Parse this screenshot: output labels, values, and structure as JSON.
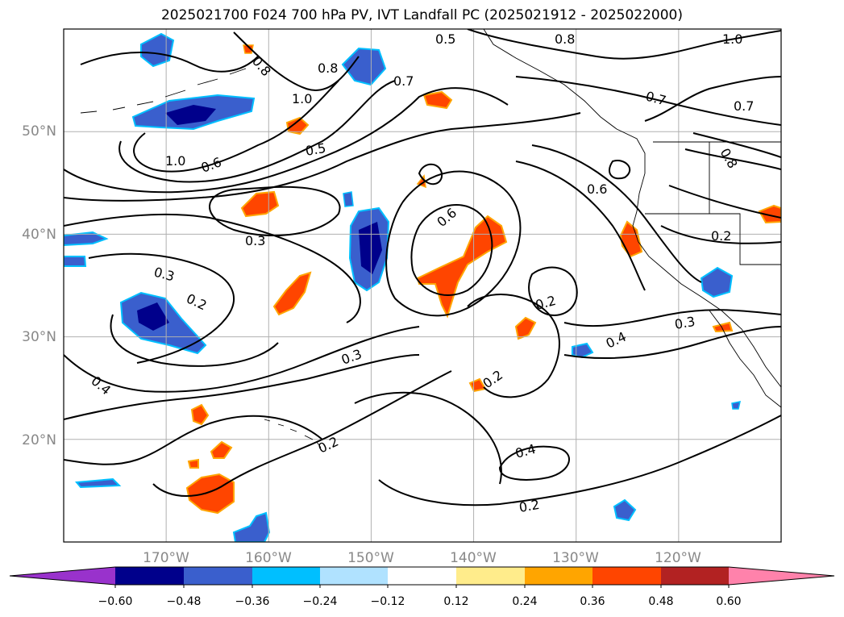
{
  "title": "2025021700 F024 700 hPa PV, IVT Landfall PC (2025021912 - 2025022000)",
  "map": {
    "lon_range": [
      -180,
      -110
    ],
    "lat_range": [
      10,
      60
    ],
    "lat_labels": [
      "50°N",
      "40°N",
      "30°N",
      "20°N"
    ],
    "lon_labels": [
      "170°W",
      "160°W",
      "150°W",
      "140°W",
      "130°W",
      "120°W"
    ],
    "gridlines": true
  },
  "contour_labels": [
    "0.5",
    "0.8",
    "1.0",
    "0.8",
    "0.8",
    "1.0",
    "0.7",
    "0.7",
    "0.7",
    "1.0",
    "0.8",
    "0.6",
    "0.5",
    "0.6",
    "0.3",
    "0.3",
    "0.2",
    "0.2",
    "0.2",
    "0.3",
    "0.4",
    "0.4",
    "0.3",
    "0.2",
    "0.4",
    "0.2",
    "0.2",
    "0.6"
  ],
  "colorbar": {
    "ticks": [
      "−0.60",
      "−0.48",
      "−0.36",
      "−0.24",
      "−0.12",
      "0.12",
      "0.24",
      "0.36",
      "0.48",
      "0.60"
    ],
    "colors": [
      "#9932cc",
      "#00008b",
      "#3a5fcd",
      "#00bfff",
      "#b0e2ff",
      "#ffffff",
      "#ffec8b",
      "#ffa500",
      "#ff4500",
      "#b22222",
      "#ff82ab"
    ],
    "extend": "both"
  }
}
